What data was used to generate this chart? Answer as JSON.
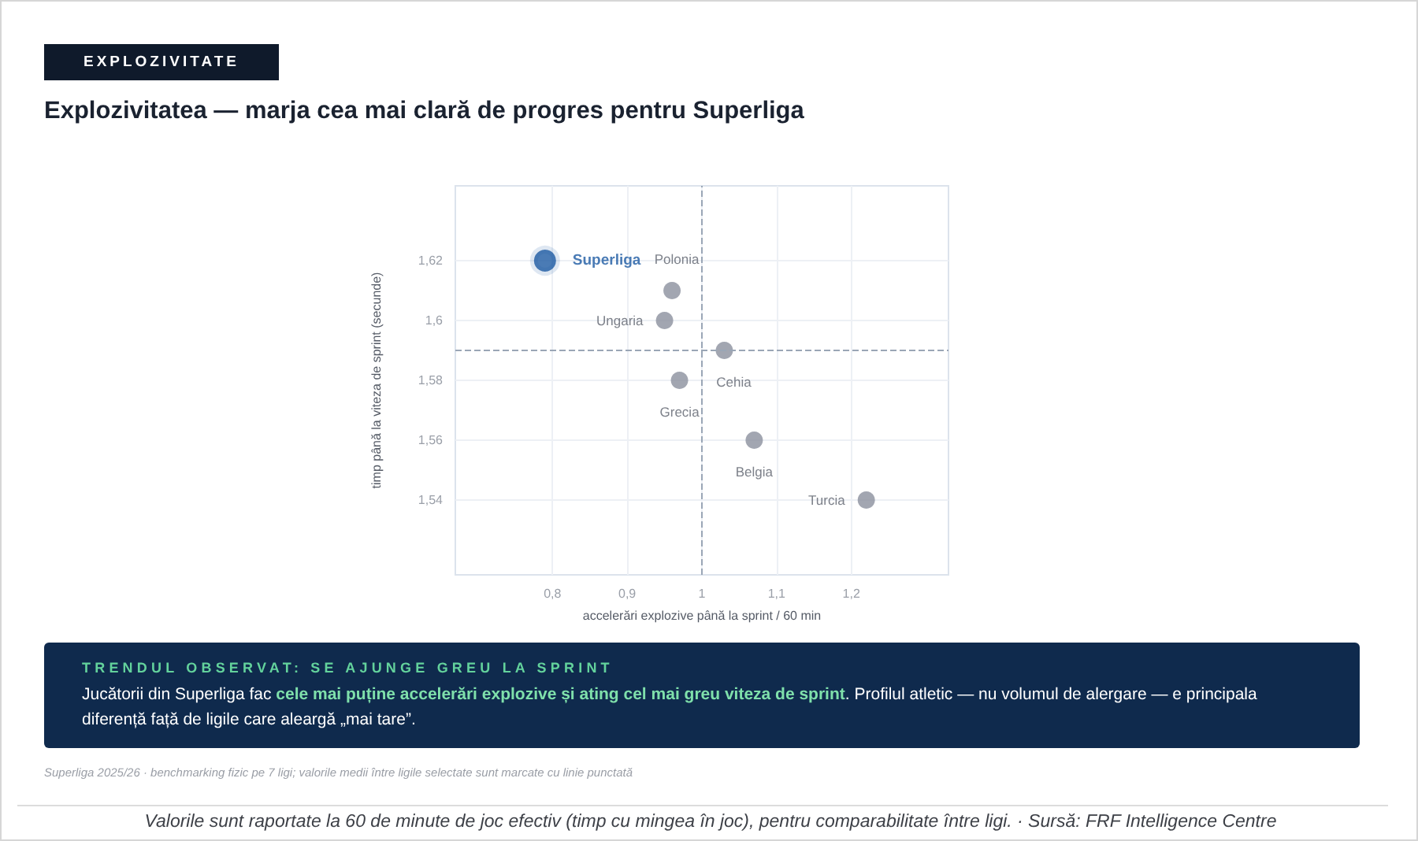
{
  "chart_data": {
    "type": "scatter",
    "title": "Explozivitatea — marja cea mai clară de progres pentru Superliga",
    "xlabel": "accelerări explozive până la sprint / 60 min",
    "ylabel": "timp până la viteza de sprint (secunde)",
    "series": [
      {
        "name": "Superliga",
        "color": "#1d5aa3",
        "x": [
          0.79
        ],
        "values": [
          1.62
        ]
      },
      {
        "name": "Polonia",
        "color": "#8b909d",
        "x": [
          0.96
        ],
        "values": [
          1.61
        ]
      },
      {
        "name": "Ungaria",
        "color": "#8b909d",
        "x": [
          0.95
        ],
        "values": [
          1.6
        ]
      },
      {
        "name": "Cehia",
        "color": "#8b909d",
        "x": [
          1.03
        ],
        "values": [
          1.59
        ]
      },
      {
        "name": "Grecia",
        "color": "#8b909d",
        "x": [
          0.97
        ],
        "values": [
          1.58
        ]
      },
      {
        "name": "Belgia",
        "color": "#8b909d",
        "x": [
          1.07
        ],
        "values": [
          1.56
        ]
      },
      {
        "name": "Turcia",
        "color": "#8b909d",
        "x": [
          1.22
        ],
        "values": [
          1.54
        ]
      }
    ],
    "xlim": [
      0.67,
      1.33
    ],
    "ylim": [
      1.515,
      1.645
    ],
    "xticks": [
      {
        "value": 0.8,
        "label": "0,8"
      },
      {
        "value": 0.9,
        "label": "0,9"
      },
      1,
      {
        "value": 1.1,
        "label": "1,1"
      },
      {
        "value": 1.2,
        "label": "1,2"
      }
    ],
    "yticks": [
      {
        "value": 1.54,
        "label": "1,54"
      },
      {
        "value": 1.56,
        "label": "1,56"
      },
      {
        "value": 1.58,
        "label": "1,58"
      },
      {
        "value": 1.6,
        "label": "1,6"
      },
      {
        "value": 1.62,
        "label": "1,62"
      }
    ],
    "ref_lines": [
      {
        "axis": "x",
        "value": 1,
        "line_style": "dashed",
        "color": "#9aa6b6"
      },
      {
        "axis": "y",
        "value": 1.59,
        "line_style": "dashed",
        "color": "#9aa6b6"
      }
    ],
    "grid": true,
    "marker": "circle",
    "annotations": [
      "EXPLOZIVITATE",
      "TRENDUL OBSERVAT: SE AJUNGE GREU LA SPRINT",
      "Jucătorii din Superliga fac ",
      "cele mai puține accelerări explozive și ating cel mai greu viteza de sprint",
      ". Profilul atletic — nu volumul de alergare — e principala",
      "diferență față de ligile care aleargă „mai tare”.",
      "Superliga 2025/26 · benchmarking fizic pe 7 ligi; valorile medii între ligile selectate sunt marcate cu linie punctată",
      "Valorile sunt raportate la 60 de minute de joc efectiv (timp cu mingea în joc), pentru comparabilitate între ligi. · Sursă: FRF Intelligence Centre"
    ]
  }
}
